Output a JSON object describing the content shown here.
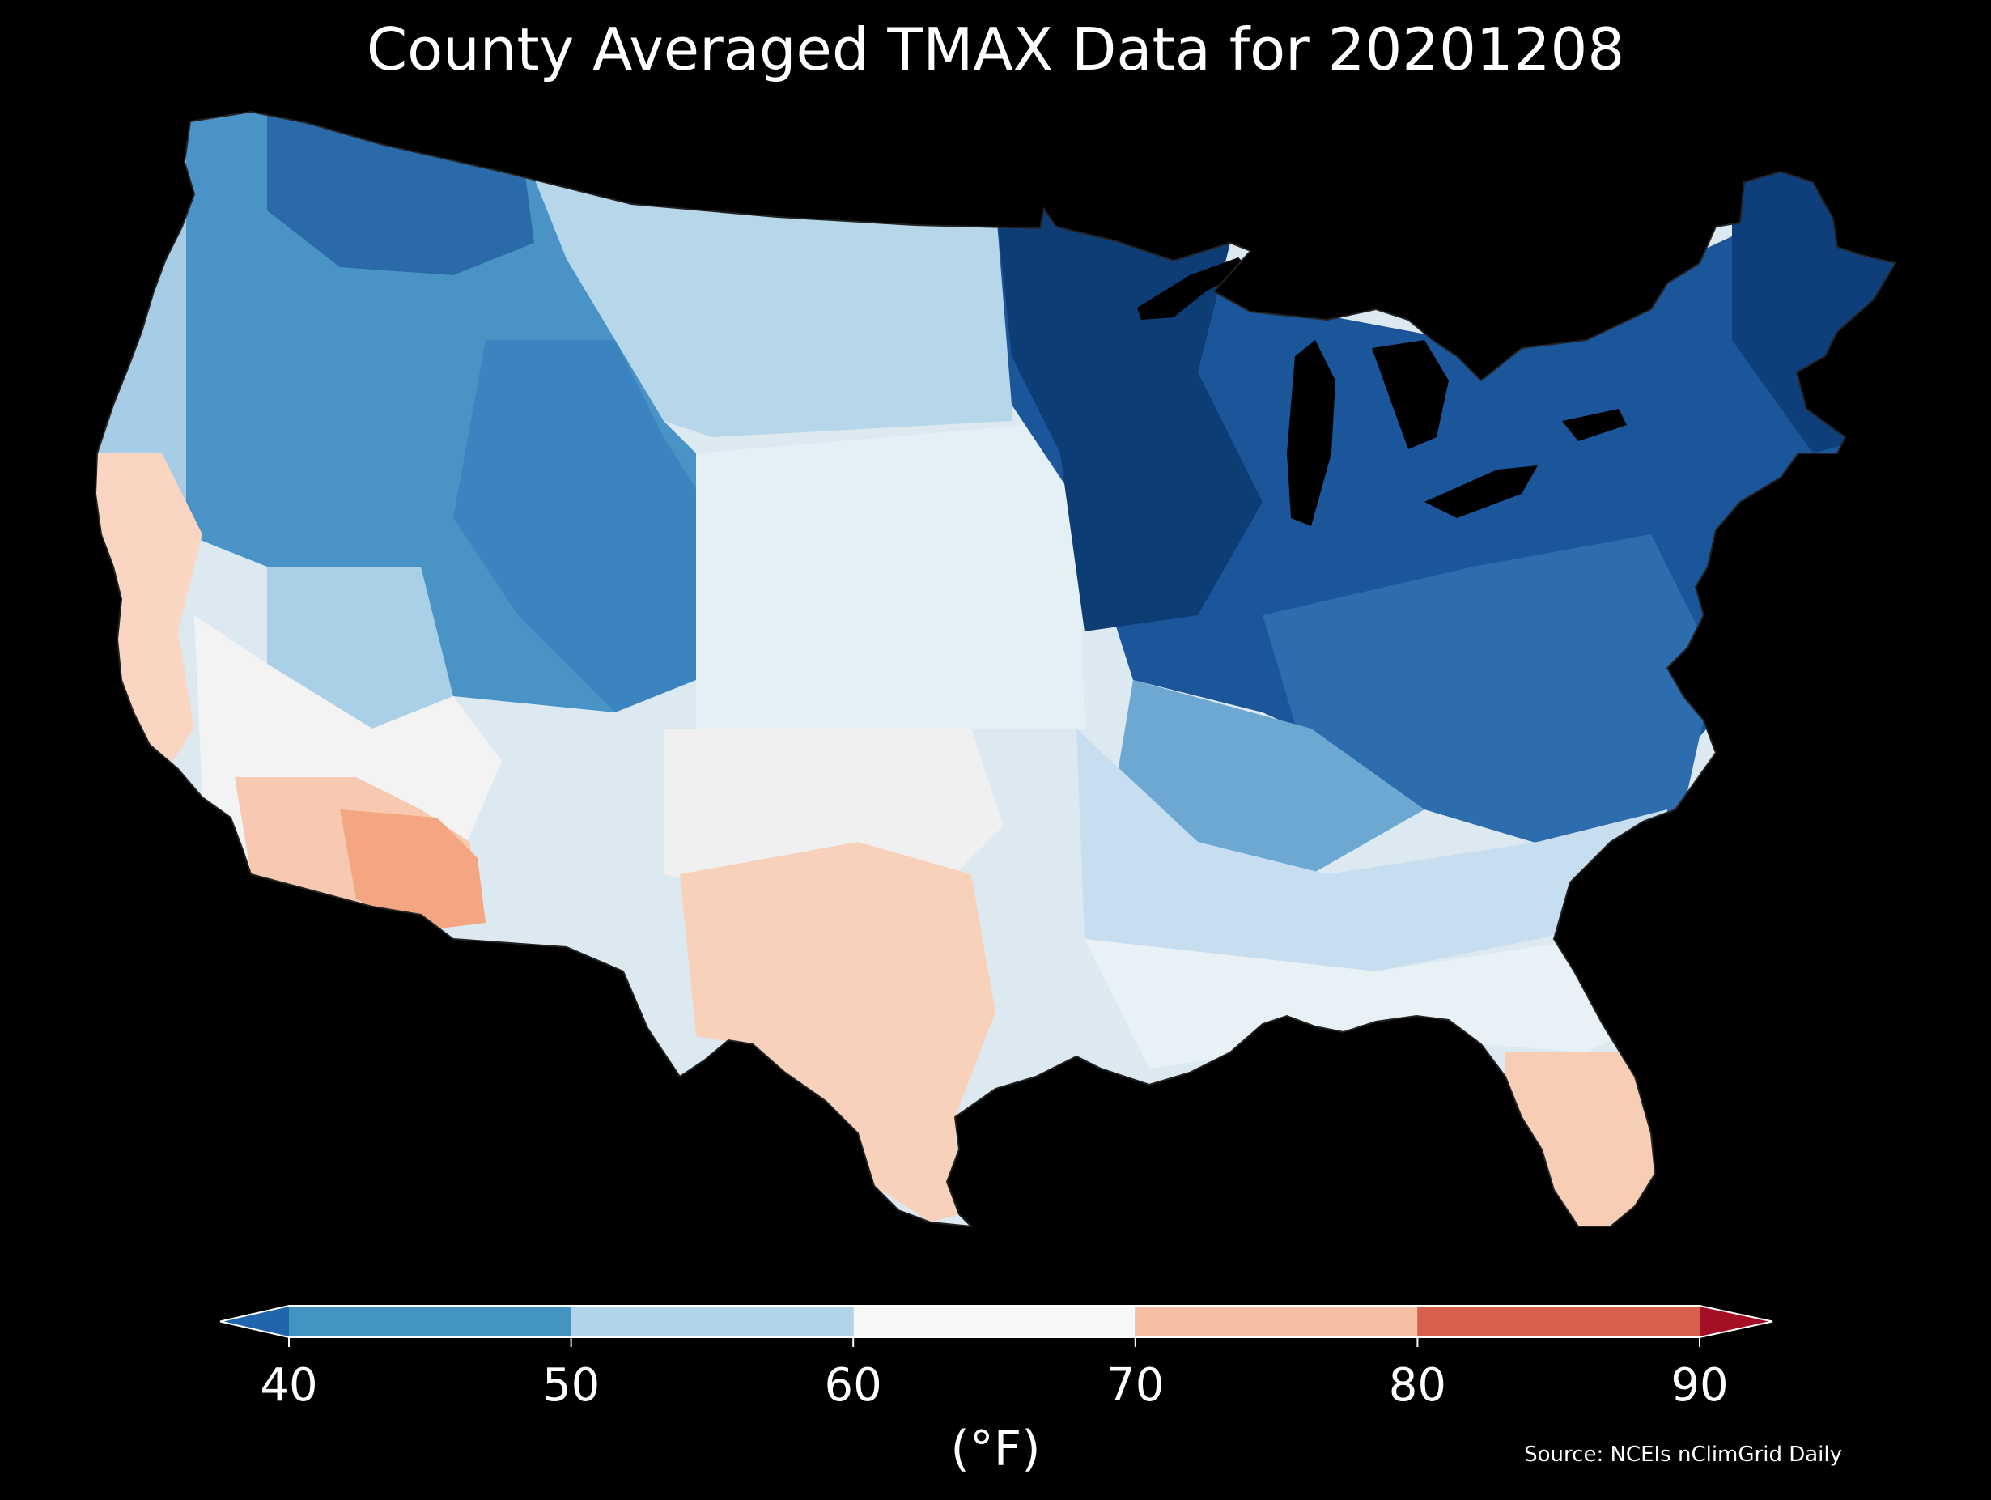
{
  "title": "County Averaged TMAX Data for 20201208",
  "colorbar": {
    "unit_label": "(°F)",
    "ticks": [
      "40",
      "50",
      "60",
      "70",
      "80",
      "90"
    ],
    "tick_values": [
      40,
      50,
      60,
      70,
      80,
      90
    ],
    "extend": "both",
    "bins": [
      {
        "from": null,
        "to": 40,
        "color": "#2166ac"
      },
      {
        "from": 40,
        "to": 50,
        "color": "#4393c3"
      },
      {
        "from": 50,
        "to": 60,
        "color": "#b2d4e8"
      },
      {
        "from": 60,
        "to": 70,
        "color": "#f7f7f7"
      },
      {
        "from": 70,
        "to": 80,
        "color": "#f7bfa2"
      },
      {
        "from": 80,
        "to": 90,
        "color": "#d6604d"
      },
      {
        "from": 90,
        "to": null,
        "color": "#a50f26"
      }
    ]
  },
  "source": "Source: NCEIs nClimGrid Daily",
  "regions": [
    {
      "name": "pacific-northwest",
      "category": "40-50",
      "color": "#4a93c6"
    },
    {
      "name": "northern-rockies",
      "category": "<40",
      "color": "#1a4f8a"
    },
    {
      "name": "great-basin",
      "category": "40-50",
      "color": "#3f89c2"
    },
    {
      "name": "northern-plains",
      "category": "50-60",
      "color": "#b6d6ea"
    },
    {
      "name": "central-plains",
      "category": "60-70",
      "color": "#e2eef5"
    },
    {
      "name": "upper-midwest",
      "category": "<40",
      "color": "#0c3a6f"
    },
    {
      "name": "great-lakes-northeast",
      "category": "<40",
      "color": "#134786"
    },
    {
      "name": "ohio-valley-appalachians",
      "category": "40-50",
      "color": "#2f6fae"
    },
    {
      "name": "southeast",
      "category": "50-60",
      "color": "#d3e5f0"
    },
    {
      "name": "gulf-coast",
      "category": "60-70",
      "color": "#eef4f7"
    },
    {
      "name": "california-coast",
      "category": "70-80",
      "color": "#fad6c2"
    },
    {
      "name": "southern-california",
      "category": "60-70",
      "color": "#f1f1f1"
    },
    {
      "name": "arizona-desert",
      "category": "70-80",
      "color": "#f4a582"
    },
    {
      "name": "south-texas",
      "category": "70-80",
      "color": "#f8d1bb"
    },
    {
      "name": "florida-peninsula",
      "category": "70-80",
      "color": "#f7cdb6"
    }
  ]
}
